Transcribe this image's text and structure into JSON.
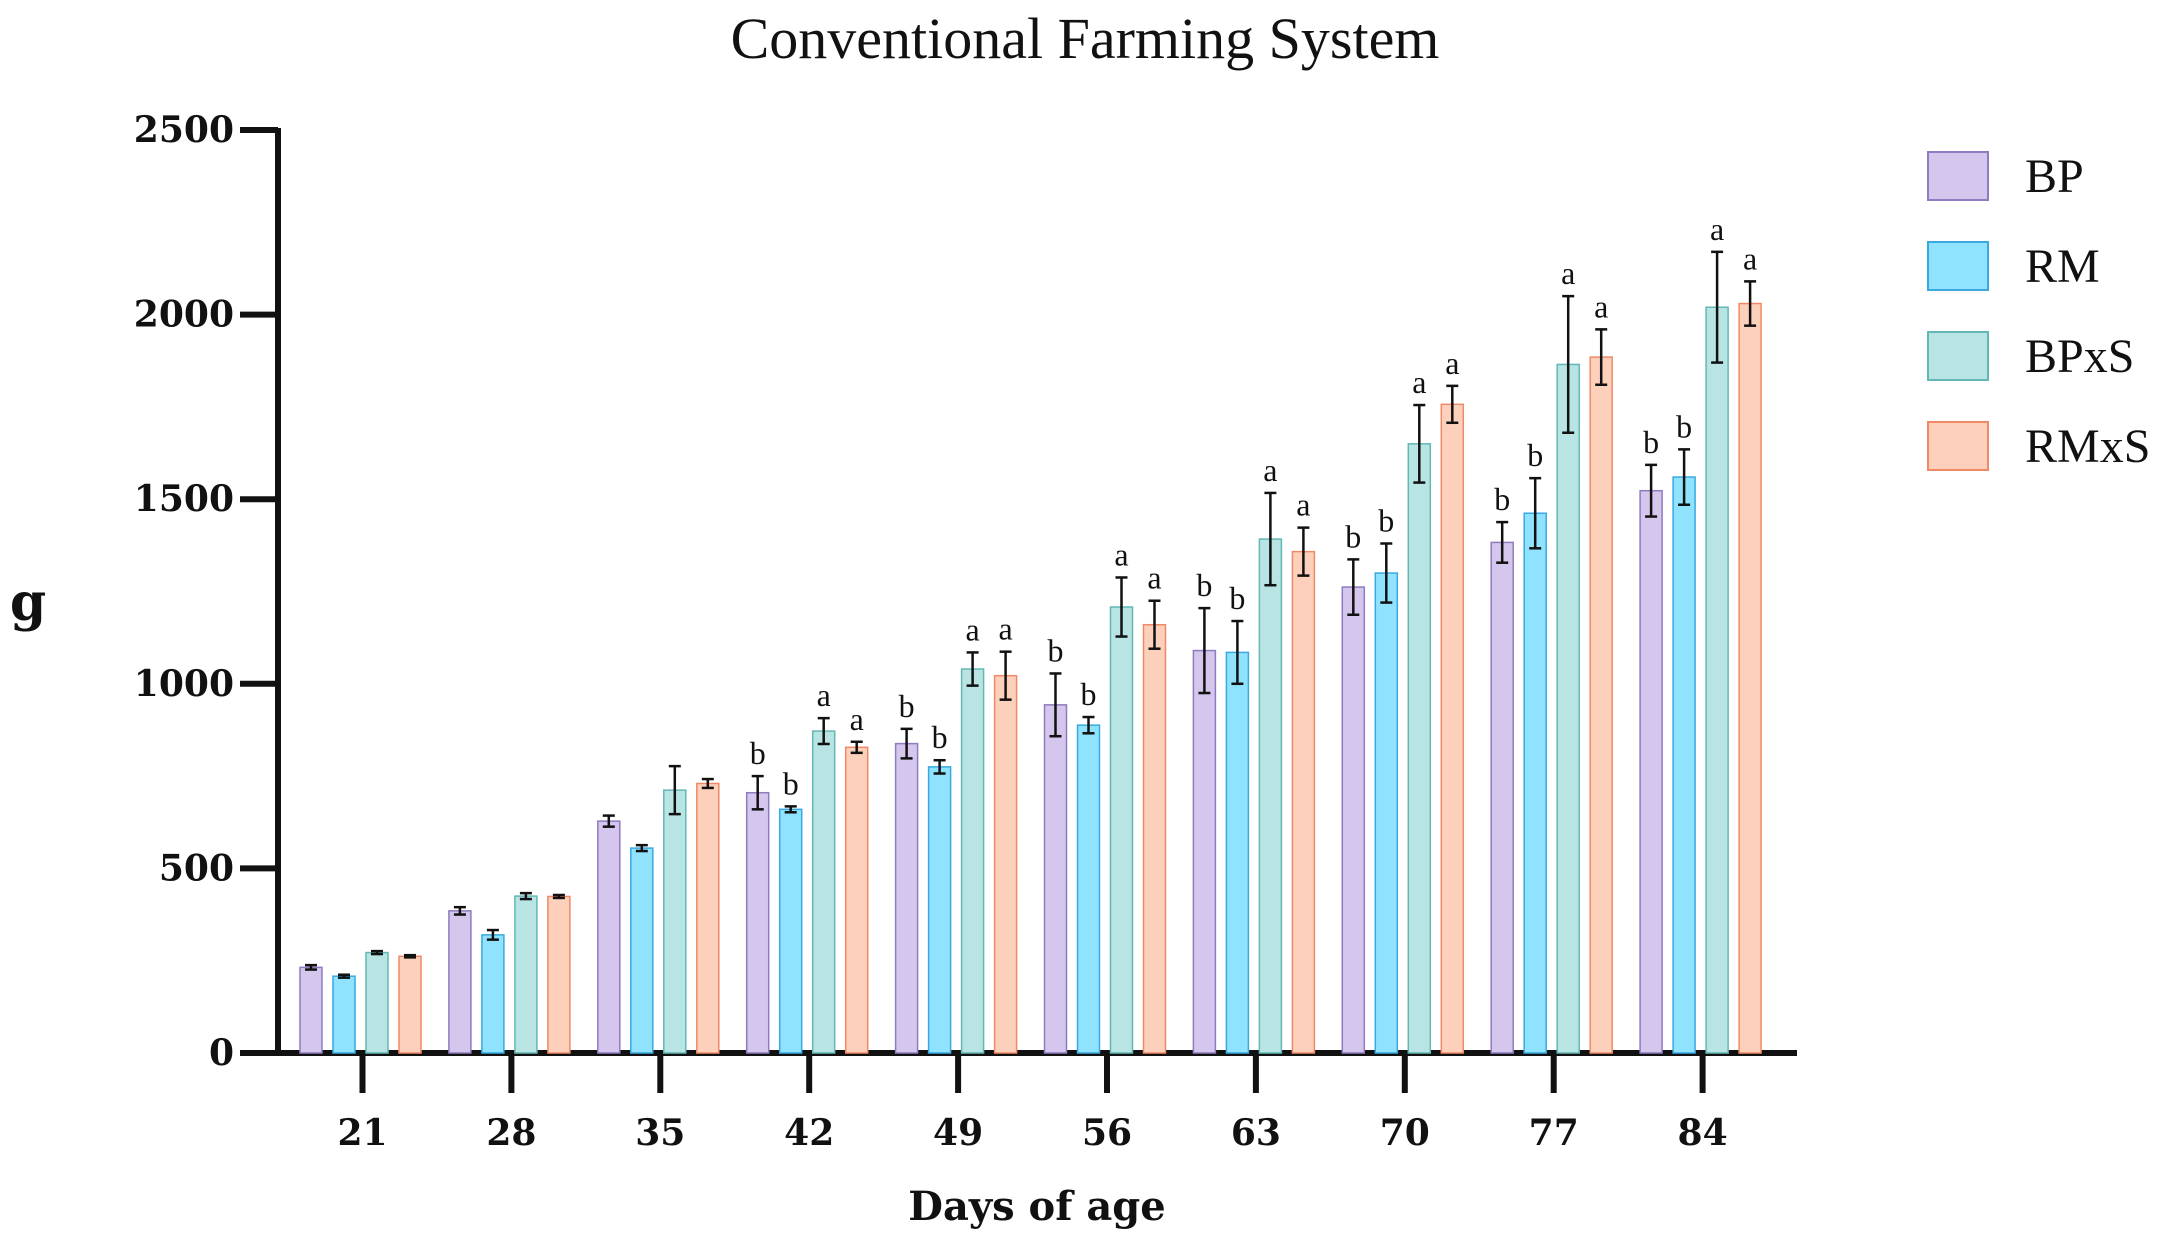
{
  "chart_data": {
    "type": "bar",
    "title": "Conventional Farming System",
    "xlabel": "Days of age",
    "ylabel": "g",
    "ylim": [
      0,
      2500
    ],
    "yticks": [
      0,
      500,
      1000,
      1500,
      2000,
      2500
    ],
    "categories": [
      "21",
      "28",
      "35",
      "42",
      "49",
      "56",
      "63",
      "70",
      "77",
      "84"
    ],
    "legend_position": "right",
    "series": [
      {
        "name": "BP",
        "color": "#d4c6ec",
        "edge": "#8f7bbf",
        "values": [
          232,
          385,
          628,
          705,
          838,
          943,
          1090,
          1262,
          1383,
          1523
        ],
        "errors": [
          6,
          10,
          15,
          45,
          40,
          85,
          115,
          75,
          55,
          70
        ],
        "letters": [
          "",
          "",
          "",
          "b",
          "b",
          "b",
          "b",
          "b",
          "b",
          "b"
        ]
      },
      {
        "name": "RM",
        "color": "#8fe3ff",
        "edge": "#39a9e0",
        "values": [
          208,
          320,
          555,
          660,
          775,
          888,
          1085,
          1300,
          1462,
          1560
        ],
        "errors": [
          4,
          13,
          8,
          8,
          18,
          22,
          85,
          80,
          95,
          75
        ],
        "letters": [
          "",
          "",
          "",
          "b",
          "b",
          "b",
          "b",
          "b",
          "b",
          "b"
        ]
      },
      {
        "name": "BPxS",
        "color": "#b8e4e4",
        "edge": "#63b8b4",
        "values": [
          272,
          425,
          712,
          872,
          1040,
          1208,
          1392,
          1650,
          1865,
          2020
        ],
        "errors": [
          4,
          8,
          65,
          35,
          45,
          80,
          125,
          105,
          185,
          150
        ],
        "letters": [
          "",
          "",
          "",
          "a",
          "a",
          "a",
          "a",
          "a",
          "a",
          "a"
        ]
      },
      {
        "name": "RMxS",
        "color": "#fdd0bc",
        "edge": "#f08a66",
        "values": [
          262,
          424,
          730,
          828,
          1022,
          1160,
          1358,
          1757,
          1885,
          2030
        ],
        "errors": [
          3,
          4,
          12,
          15,
          65,
          65,
          65,
          50,
          75,
          60
        ],
        "letters": [
          "",
          "",
          "",
          "a",
          "a",
          "a",
          "a",
          "a",
          "a",
          "a"
        ]
      }
    ]
  }
}
